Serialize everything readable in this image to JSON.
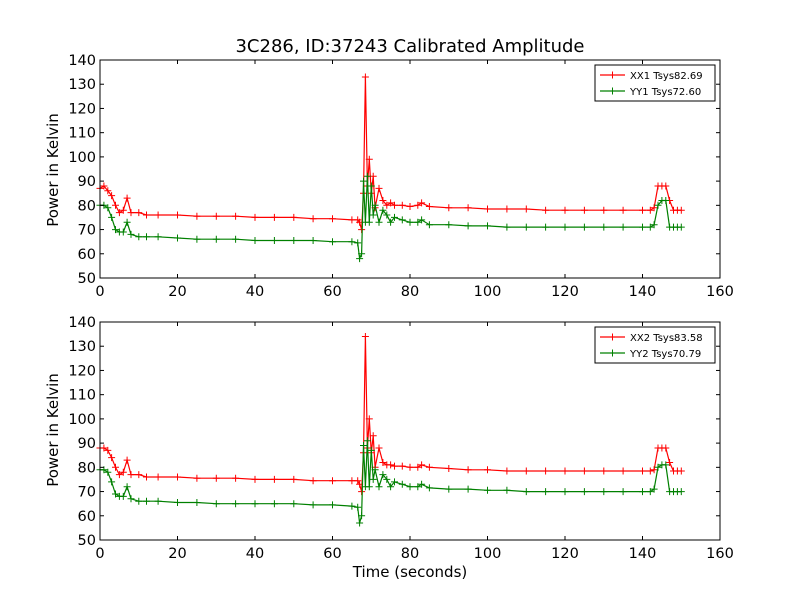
{
  "chart_data": [
    {
      "type": "line",
      "title": "3C286, ID:37243 Calibrated Amplitude",
      "xlabel": "",
      "ylabel": "Power in Kelvin",
      "xlim": [
        0,
        160
      ],
      "ylim": [
        50,
        140
      ],
      "xticks": [
        "0",
        "20",
        "40",
        "60",
        "80",
        "100",
        "120",
        "140",
        "160"
      ],
      "yticks": [
        "50",
        "60",
        "70",
        "80",
        "90",
        "100",
        "110",
        "120",
        "130",
        "140"
      ],
      "grid": false,
      "legend_position": "top-right",
      "series": [
        {
          "name": "XX1 Tsys82.69",
          "color": "#ff0000",
          "x": [
            0,
            1,
            2,
            3,
            4,
            5,
            6,
            7,
            8,
            10,
            12,
            15,
            20,
            25,
            30,
            35,
            40,
            45,
            50,
            55,
            60,
            65,
            66.5,
            67,
            67.5,
            68,
            68.5,
            69,
            69.5,
            70,
            70.5,
            71,
            72,
            73,
            74,
            75,
            76,
            78,
            80,
            82,
            83,
            85,
            90,
            95,
            100,
            105,
            110,
            115,
            120,
            125,
            130,
            135,
            140,
            142,
            143,
            144,
            145,
            146,
            147,
            148,
            149,
            150
          ],
          "y": [
            87,
            88,
            86,
            84,
            80,
            77,
            78,
            83,
            77,
            77,
            76,
            76,
            76,
            75.5,
            75.5,
            75.5,
            75,
            75,
            75,
            74.5,
            74.5,
            74,
            74,
            73,
            70,
            85,
            133,
            88,
            99,
            85,
            92,
            79,
            87,
            82,
            80,
            81,
            80,
            80,
            79.5,
            80,
            81,
            79.5,
            79,
            79,
            78.5,
            78.5,
            78.5,
            78,
            78,
            78,
            78,
            78,
            78,
            78,
            79,
            88,
            88,
            88,
            82,
            78,
            78,
            78
          ]
        },
        {
          "name": "YY1 Tsys72.60",
          "color": "#008000",
          "x": [
            0,
            1,
            2,
            3,
            4,
            5,
            6,
            7,
            8,
            10,
            12,
            15,
            20,
            25,
            30,
            35,
            40,
            45,
            50,
            55,
            60,
            65,
            66.5,
            67,
            67.5,
            68,
            68.5,
            69,
            69.5,
            70,
            70.5,
            71,
            72,
            73,
            74,
            75,
            76,
            78,
            80,
            82,
            83,
            85,
            90,
            95,
            100,
            105,
            110,
            115,
            120,
            125,
            130,
            135,
            140,
            142,
            143,
            144,
            145,
            146,
            147,
            148,
            149,
            150
          ],
          "y": [
            80,
            80,
            79,
            75,
            70,
            69,
            69,
            73,
            68,
            67,
            67,
            67,
            66.5,
            66,
            66,
            66,
            65.5,
            65.5,
            65.5,
            65.5,
            65,
            65,
            64.5,
            58,
            60,
            90,
            73,
            92,
            73,
            88,
            76,
            80,
            73,
            78,
            76,
            73,
            75,
            74,
            73,
            73,
            74,
            72,
            72,
            71.5,
            71.5,
            71,
            71,
            71,
            71,
            71,
            71,
            71,
            71,
            71,
            72,
            80,
            82,
            82,
            71,
            71,
            71,
            71
          ]
        }
      ]
    },
    {
      "type": "line",
      "title": "",
      "xlabel": "Time (seconds)",
      "ylabel": "Power in Kelvin",
      "xlim": [
        0,
        160
      ],
      "ylim": [
        50,
        140
      ],
      "xticks": [
        "0",
        "20",
        "40",
        "60",
        "80",
        "100",
        "120",
        "140",
        "160"
      ],
      "yticks": [
        "50",
        "60",
        "70",
        "80",
        "90",
        "100",
        "110",
        "120",
        "130",
        "140"
      ],
      "grid": false,
      "legend_position": "top-right",
      "series": [
        {
          "name": "XX2 Tsys83.58",
          "color": "#ff0000",
          "x": [
            0,
            1,
            2,
            3,
            4,
            5,
            6,
            7,
            8,
            10,
            12,
            15,
            20,
            25,
            30,
            35,
            40,
            45,
            50,
            55,
            60,
            65,
            66.5,
            67,
            67.5,
            68,
            68.5,
            69,
            69.5,
            70,
            70.5,
            71,
            72,
            73,
            74,
            75,
            76,
            78,
            80,
            82,
            83,
            85,
            90,
            95,
            100,
            105,
            110,
            115,
            120,
            125,
            130,
            135,
            140,
            142,
            143,
            144,
            145,
            146,
            147,
            148,
            149,
            150
          ],
          "y": [
            88,
            88,
            87,
            84,
            80,
            77,
            78,
            83,
            77,
            77,
            76,
            76,
            76,
            75.5,
            75.5,
            75.5,
            75,
            75,
            75,
            74.5,
            74.5,
            74.5,
            74.5,
            73,
            70,
            86,
            134,
            88,
            100,
            86,
            93,
            80,
            88,
            82,
            81,
            81,
            80.5,
            80.5,
            80,
            80,
            81,
            80,
            79.5,
            79,
            79,
            78.5,
            78.5,
            78.5,
            78.5,
            78.5,
            78.5,
            78.5,
            78.5,
            78.5,
            79,
            88,
            88,
            88,
            82,
            78.5,
            78.5,
            78.5
          ]
        },
        {
          "name": "YY2 Tsys70.79",
          "color": "#008000",
          "x": [
            0,
            1,
            2,
            3,
            4,
            5,
            6,
            7,
            8,
            10,
            12,
            15,
            20,
            25,
            30,
            35,
            40,
            45,
            50,
            55,
            60,
            65,
            66.5,
            67,
            67.5,
            68,
            68.5,
            69,
            69.5,
            70,
            70.5,
            71,
            72,
            73,
            74,
            75,
            76,
            78,
            80,
            82,
            83,
            85,
            90,
            95,
            100,
            105,
            110,
            115,
            120,
            125,
            130,
            135,
            140,
            142,
            143,
            144,
            145,
            146,
            147,
            148,
            149,
            150
          ],
          "y": [
            79,
            79,
            78,
            74,
            69,
            68,
            68,
            72,
            67,
            66,
            66,
            66,
            65.5,
            65.5,
            65,
            65,
            65,
            65,
            65,
            64.5,
            64.5,
            64,
            63.5,
            57,
            60,
            89,
            72,
            91,
            72,
            87,
            75,
            79,
            72,
            77,
            75,
            72,
            74,
            73,
            72,
            72,
            73,
            71.5,
            71,
            71,
            70.5,
            70.5,
            70,
            70,
            70,
            70,
            70,
            70,
            70,
            70,
            71,
            80,
            81,
            81,
            70,
            70,
            70,
            70
          ]
        }
      ]
    }
  ]
}
